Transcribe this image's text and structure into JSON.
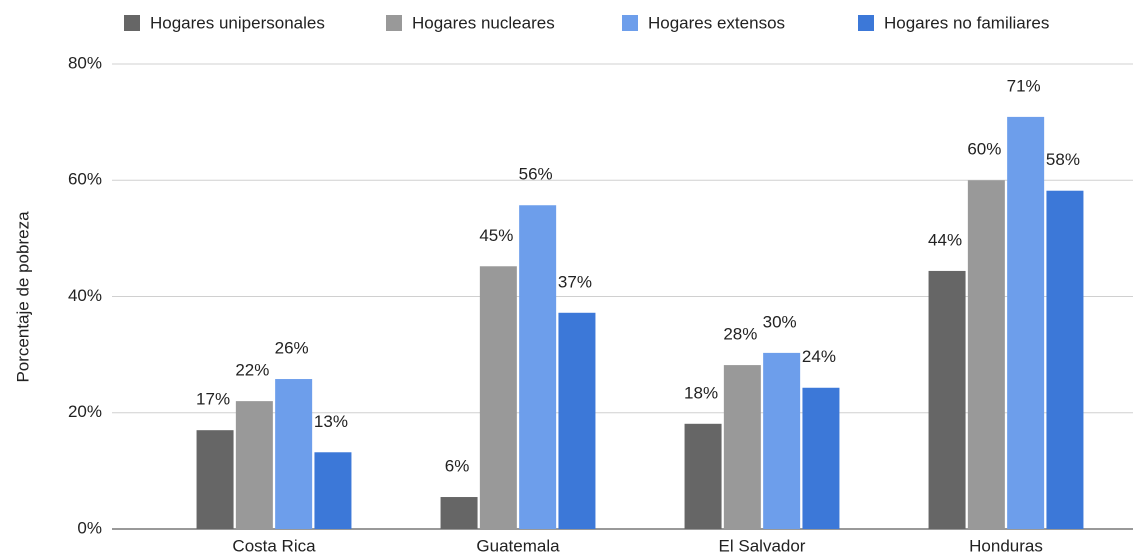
{
  "chart_data": {
    "type": "bar",
    "y_label": "Porcentaje de pobreza",
    "categories": [
      "Costa Rica",
      "Guatemala",
      "El Salvador",
      "Honduras"
    ],
    "series": [
      {
        "name": "Hogares unipersonales",
        "color": "#666666",
        "values": [
          17.0,
          5.5,
          18.1,
          44.4
        ],
        "value_labels": [
          "17%",
          "6%",
          "18%",
          "44%"
        ]
      },
      {
        "name": "Hogares nucleares",
        "color": "#999999",
        "values": [
          22.0,
          45.2,
          28.2,
          60.0
        ],
        "value_labels": [
          "22%",
          "45%",
          "28%",
          "60%"
        ]
      },
      {
        "name": "Hogares extensos",
        "color": "#6d9eeb",
        "values": [
          25.8,
          55.7,
          30.3,
          70.9
        ],
        "value_labels": [
          "26%",
          "56%",
          "30%",
          "71%"
        ]
      },
      {
        "name": "Hogares no familiares",
        "color": "#3c78d8",
        "values": [
          13.2,
          37.2,
          24.3,
          58.2
        ],
        "value_labels": [
          "13%",
          "37%",
          "24%",
          "58%"
        ]
      }
    ],
    "ylim": [
      0,
      80
    ],
    "yticks": [
      {
        "value": 0,
        "label": "0%"
      },
      {
        "value": 20,
        "label": "20%"
      },
      {
        "value": 40,
        "label": "40%"
      },
      {
        "value": 60,
        "label": "60%"
      },
      {
        "value": 80,
        "label": "80%"
      }
    ],
    "grid": true,
    "legend": "top"
  }
}
